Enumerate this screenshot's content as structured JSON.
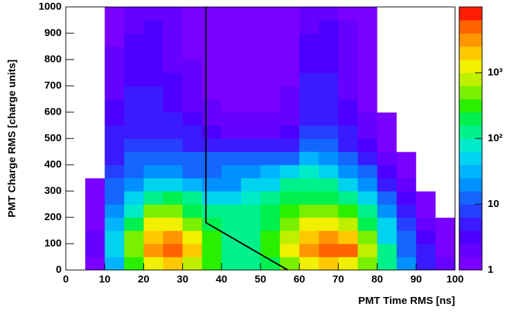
{
  "chart_data": {
    "type": "heatmap",
    "ylabel": "PMT Charge RMS [charge units]",
    "xlabel": "PMT Time RMS [ns]",
    "xlim": [
      0,
      100
    ],
    "ylim": [
      0,
      1000
    ],
    "xticks": [
      0,
      10,
      20,
      30,
      40,
      50,
      60,
      70,
      80,
      90,
      100
    ],
    "yticks": [
      0,
      100,
      200,
      300,
      400,
      500,
      600,
      700,
      800,
      900,
      1000
    ],
    "xbins": [
      0,
      5,
      10,
      15,
      20,
      25,
      30,
      35,
      40,
      45,
      50,
      55,
      60,
      65,
      70,
      75,
      80,
      85,
      90,
      95,
      100
    ],
    "ybins": [
      0,
      50,
      100,
      150,
      200,
      250,
      300,
      350,
      400,
      450,
      500,
      550,
      600,
      650,
      700,
      750,
      800,
      850,
      900,
      950,
      1000
    ],
    "z": [
      [
        0,
        1,
        30,
        300,
        1500,
        2000,
        800,
        300,
        150,
        150,
        200,
        400,
        1000,
        2000,
        1500,
        500,
        100,
        20,
        5,
        2
      ],
      [
        0,
        2,
        50,
        600,
        3000,
        5000,
        2000,
        300,
        150,
        150,
        300,
        1000,
        3000,
        6000,
        4000,
        800,
        100,
        15,
        5,
        1
      ],
      [
        0,
        2,
        40,
        400,
        2500,
        3500,
        1500,
        300,
        150,
        150,
        300,
        800,
        2500,
        3500,
        2000,
        500,
        60,
        10,
        3,
        1
      ],
      [
        0,
        1,
        30,
        200,
        1200,
        1500,
        600,
        200,
        150,
        150,
        250,
        400,
        1000,
        1200,
        800,
        250,
        40,
        8,
        2,
        1
      ],
      [
        0,
        1,
        20,
        80,
        500,
        600,
        250,
        120,
        120,
        150,
        200,
        300,
        400,
        450,
        300,
        100,
        20,
        5,
        1,
        0
      ],
      [
        0,
        1,
        15,
        40,
        150,
        200,
        100,
        60,
        60,
        80,
        120,
        200,
        250,
        250,
        150,
        50,
        10,
        3,
        1,
        0
      ],
      [
        0,
        1,
        10,
        25,
        40,
        40,
        30,
        25,
        25,
        40,
        60,
        100,
        150,
        100,
        50,
        20,
        5,
        2,
        0,
        0
      ],
      [
        0,
        0,
        8,
        15,
        20,
        20,
        15,
        15,
        20,
        25,
        30,
        40,
        80,
        50,
        25,
        10,
        3,
        1,
        0,
        0
      ],
      [
        0,
        0,
        6,
        10,
        12,
        12,
        10,
        10,
        15,
        15,
        15,
        15,
        30,
        25,
        12,
        5,
        2,
        1,
        0,
        0
      ],
      [
        0,
        0,
        5,
        8,
        8,
        8,
        6,
        5,
        5,
        5,
        5,
        6,
        12,
        12,
        6,
        3,
        1,
        0,
        0,
        0
      ],
      [
        0,
        0,
        4,
        6,
        6,
        5,
        4,
        3,
        2,
        2,
        2,
        3,
        8,
        8,
        4,
        2,
        1,
        0,
        0,
        0
      ],
      [
        0,
        0,
        3,
        5,
        5,
        4,
        3,
        2,
        2,
        2,
        2,
        2,
        6,
        6,
        3,
        2,
        1,
        0,
        0,
        0
      ],
      [
        0,
        0,
        3,
        4,
        4,
        3,
        2,
        2,
        1,
        1,
        1,
        2,
        5,
        5,
        3,
        1,
        0,
        0,
        0,
        0
      ],
      [
        0,
        0,
        2,
        4,
        4,
        3,
        2,
        1,
        1,
        1,
        1,
        2,
        4,
        4,
        2,
        1,
        0,
        0,
        0,
        0
      ],
      [
        0,
        0,
        2,
        3,
        3,
        3,
        2,
        1,
        1,
        1,
        1,
        1,
        4,
        4,
        2,
        1,
        0,
        0,
        0,
        0
      ],
      [
        0,
        0,
        2,
        3,
        3,
        2,
        2,
        1,
        1,
        1,
        1,
        1,
        3,
        3,
        2,
        1,
        0,
        0,
        0,
        0
      ],
      [
        0,
        0,
        2,
        3,
        3,
        2,
        1,
        1,
        1,
        1,
        1,
        1,
        3,
        3,
        2,
        1,
        0,
        0,
        0,
        0
      ],
      [
        0,
        0,
        1,
        3,
        3,
        2,
        1,
        1,
        1,
        1,
        1,
        1,
        3,
        3,
        2,
        1,
        0,
        0,
        0,
        0
      ],
      [
        0,
        0,
        1,
        2,
        3,
        2,
        1,
        1,
        1,
        1,
        1,
        1,
        2,
        3,
        2,
        1,
        0,
        0,
        0,
        0
      ],
      [
        0,
        0,
        1,
        2,
        2,
        2,
        1,
        1,
        1,
        1,
        1,
        1,
        2,
        2,
        1,
        1,
        0,
        0,
        0,
        0
      ]
    ],
    "zlim": [
      1,
      10000
    ],
    "zlog": true,
    "zticks": [
      1,
      10,
      {
        "value": 100,
        "label": "10²"
      },
      {
        "value": 1000,
        "label": "10³"
      }
    ],
    "palette": [
      "#7a00ff",
      "#6600ff",
      "#4d00ff",
      "#3a1aff",
      "#2640ff",
      "#1466ff",
      "#0090ff",
      "#00b4ff",
      "#00d2f0",
      "#00ebc8",
      "#00f08c",
      "#00f050",
      "#28f000",
      "#78f000",
      "#bef000",
      "#f0f000",
      "#ffc800",
      "#ff9600",
      "#ff6400",
      "#ff1e00"
    ],
    "cut_line": {
      "x": [
        36,
        36,
        57
      ],
      "y": [
        1000,
        180,
        0
      ],
      "color": "#000000"
    }
  }
}
